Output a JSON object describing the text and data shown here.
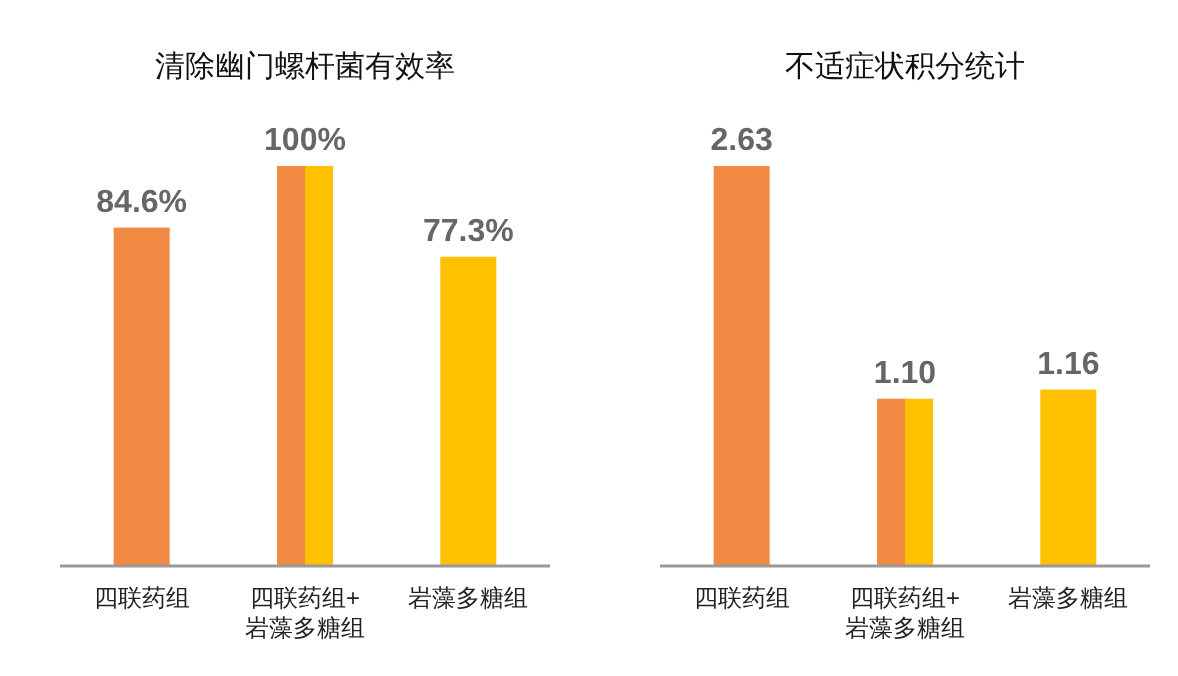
{
  "chart_data": [
    {
      "type": "bar",
      "title": "清除幽门螺杆菌有效率",
      "categories": [
        "四联药组",
        "四联药组+\n岩藻多糖组",
        "岩藻多糖组"
      ],
      "series": [
        {
          "color": "#f28a44",
          "values": [
            84.6,
            100,
            null
          ],
          "value_labels": [
            "84.6%",
            "100%",
            null
          ]
        },
        {
          "color": "#ffc000",
          "values": [
            null,
            100,
            77.3
          ],
          "value_labels": [
            null,
            null,
            "77.3%"
          ]
        }
      ]
    },
    {
      "type": "bar",
      "title": "不适症状积分统计",
      "categories": [
        "四联药组",
        "四联药组+\n岩藻多糖组",
        "岩藻多糖组"
      ],
      "series": [
        {
          "color": "#f28a44",
          "values": [
            2.63,
            1.1,
            null
          ],
          "value_labels": [
            "2.63",
            "1.10",
            null
          ]
        },
        {
          "color": "#ffc000",
          "values": [
            null,
            1.1,
            1.16
          ],
          "value_labels": [
            null,
            null,
            "1.16"
          ]
        }
      ]
    }
  ]
}
